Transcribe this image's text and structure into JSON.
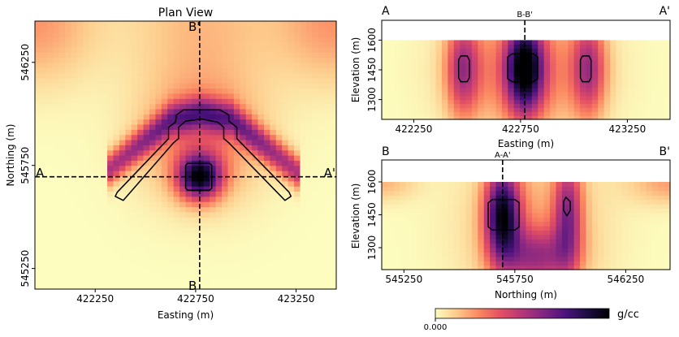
{
  "colors": {
    "cmap": [
      "#fcfdbf",
      "#fdc98a",
      "#fb8761",
      "#e44f62",
      "#b5367a",
      "#7f2582",
      "#4b117c",
      "#1b0c41",
      "#000004"
    ],
    "section_line": "#000000"
  },
  "chart_data": [
    {
      "type": "heatmap",
      "panel": "plan",
      "title": "Plan View",
      "xlabel": "Easting (m)",
      "ylabel": "Northing (m)",
      "xlim": [
        421950,
        423450
      ],
      "ylim": [
        545150,
        546450
      ],
      "xticks": [
        422250,
        422750,
        423250
      ],
      "xtick_labels": [
        "422250",
        "422750",
        "423250"
      ],
      "yticks": [
        545250,
        545750,
        546250
      ],
      "ytick_labels": [
        "545250",
        "545750",
        "546250"
      ],
      "section_labels": {
        "west": "A",
        "east": "A'",
        "north": "B'",
        "south": "B"
      },
      "section_lines": {
        "ew_northing": 545695,
        "ns_easting": 422770
      },
      "anomalies": [
        {
          "type": "block",
          "easting": 422770,
          "northing": 545695,
          "peak": 0.85
        },
        {
          "type": "arch",
          "apex_easting": 422780,
          "apex_northing": 545990,
          "peak": 0.5
        }
      ],
      "outlines": [
        {
          "name": "block",
          "points": [
            [
              422710,
              545760
            ],
            [
              422820,
              545760
            ],
            [
              422830,
              545750
            ],
            [
              422830,
              545640
            ],
            [
              422820,
              545630
            ],
            [
              422710,
              545630
            ],
            [
              422700,
              545640
            ],
            [
              422700,
              545750
            ]
          ]
        },
        {
          "name": "arch",
          "points": [
            [
              422360,
              545620
            ],
            [
              422615,
              545880
            ],
            [
              422615,
              545935
            ],
            [
              422650,
              545960
            ],
            [
              422655,
              545995
            ],
            [
              422690,
              546020
            ],
            [
              422870,
              546020
            ],
            [
              422915,
              545995
            ],
            [
              422915,
              545965
            ],
            [
              422955,
              545935
            ],
            [
              422955,
              545880
            ],
            [
              423215,
              545620
            ],
            [
              423225,
              545600
            ],
            [
              423195,
              545580
            ],
            [
              422915,
              545860
            ],
            [
              422890,
              545880
            ],
            [
              422890,
              545935
            ],
            [
              422860,
              545960
            ],
            [
              422780,
              545975
            ],
            [
              422700,
              545965
            ],
            [
              422665,
              545935
            ],
            [
              422665,
              545880
            ],
            [
              422640,
              545860
            ],
            [
              422390,
              545580
            ],
            [
              422350,
              545600
            ]
          ]
        }
      ]
    },
    {
      "type": "heatmap",
      "panel": "section_a",
      "corner_labels": {
        "left": "A",
        "right": "A'"
      },
      "cross_label": "B-B'",
      "xlabel": "Easting (m)",
      "ylabel": "Elevation (m)",
      "xlim": [
        422100,
        423450
      ],
      "ylim": [
        1200,
        1700
      ],
      "xticks": [
        422250,
        422750,
        423250
      ],
      "xtick_labels": [
        "422250",
        "422750",
        "423250"
      ],
      "yticks": [
        1300,
        1450,
        1600
      ],
      "ytick_labels": [
        "1300",
        "1450",
        "1600"
      ],
      "topo_elevation": 1600,
      "cross_line_x": 422770,
      "anomalies": [
        {
          "x": 422770,
          "z": 1460,
          "peak": 0.85
        },
        {
          "x": 422480,
          "z": 1460,
          "peak": 0.45
        },
        {
          "x": 423070,
          "z": 1460,
          "peak": 0.45
        }
      ],
      "outlines": [
        {
          "name": "block",
          "points": [
            [
              422710,
              1530
            ],
            [
              422810,
              1530
            ],
            [
              422830,
              1515
            ],
            [
              422830,
              1405
            ],
            [
              422810,
              1390
            ],
            [
              422710,
              1390
            ],
            [
              422690,
              1405
            ],
            [
              422690,
              1515
            ]
          ]
        },
        {
          "name": "arch-west",
          "points": [
            [
              422470,
              1520
            ],
            [
              422500,
              1520
            ],
            [
              422510,
              1500
            ],
            [
              422510,
              1410
            ],
            [
              422500,
              1390
            ],
            [
              422470,
              1390
            ],
            [
              422460,
              1410
            ],
            [
              422460,
              1500
            ]
          ]
        },
        {
          "name": "arch-east",
          "points": [
            [
              423040,
              1520
            ],
            [
              423070,
              1520
            ],
            [
              423080,
              1500
            ],
            [
              423080,
              1410
            ],
            [
              423070,
              1390
            ],
            [
              423040,
              1390
            ],
            [
              423030,
              1410
            ],
            [
              423030,
              1500
            ]
          ]
        }
      ]
    },
    {
      "type": "heatmap",
      "panel": "section_b",
      "corner_labels": {
        "left": "B",
        "right": "B'"
      },
      "cross_label": "A-A'",
      "xlabel": "Northing (m)",
      "ylabel": "Elevation (m)",
      "xlim": [
        545150,
        546450
      ],
      "ylim": [
        1200,
        1700
      ],
      "xticks": [
        545250,
        545750,
        546250
      ],
      "xtick_labels": [
        "545250",
        "545750",
        "546250"
      ],
      "yticks": [
        1300,
        1450,
        1600
      ],
      "ytick_labels": [
        "1300",
        "1450",
        "1600"
      ],
      "topo_elevation": 1600,
      "cross_line_x": 545695,
      "anomalies": [
        {
          "x": 545695,
          "z": 1450,
          "peak": 0.85
        },
        {
          "x": 545990,
          "z": 1450,
          "peak": 0.5
        }
      ],
      "outlines": [
        {
          "name": "block",
          "points": [
            [
              545650,
              1520
            ],
            [
              545750,
              1520
            ],
            [
              545770,
              1505
            ],
            [
              545770,
              1395
            ],
            [
              545750,
              1380
            ],
            [
              545650,
              1380
            ],
            [
              545630,
              1395
            ],
            [
              545630,
              1505
            ]
          ]
        },
        {
          "name": "arch-limb",
          "points": [
            [
              545980,
              1530
            ],
            [
              546000,
              1510
            ],
            [
              546000,
              1470
            ],
            [
              545985,
              1445
            ],
            [
              545970,
              1470
            ],
            [
              545970,
              1510
            ]
          ]
        }
      ]
    }
  ],
  "colorbar": {
    "label": "g/cc",
    "min_label": "0.000"
  }
}
